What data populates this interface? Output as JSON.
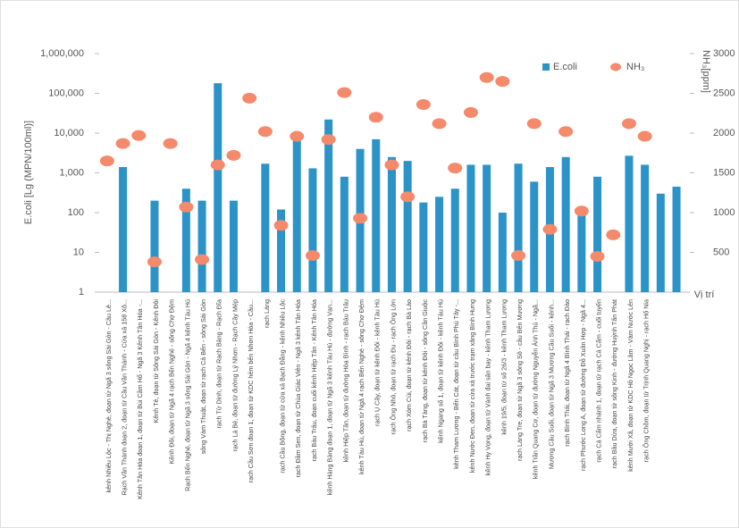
{
  "chart_data": {
    "type": "bar+scatter",
    "categories": [
      "kênh Nhiêu Lộc - Thị Nghè, đoạn từ Ngã 3 sông Sài Gòn - Cầu Lê...",
      "Rạch Văn Thánh đoạn 2, đoạn từ Cầu Văn Thánh - Cửa xả 158 Xô...",
      "Kênh Tân Hóa đoạn 1, đoạn từ Bùi Cầm Hổ - Ngã 3 Kênh Tân Hóa -...",
      "Kênh Tẻ, đoạn từ Sông Sài Gòn - Kênh Đôi",
      "Kênh Đôi, đoạn từ Ngã 4 rạch Bến Nghé - sông Chợ Đệm",
      "Rạch Bến Nghé, đoạn từ Ngã 3 sông Sài Gòn - Ngã 4 kênh Tàu Hủ",
      "sông Vàm Thuật, đoạn từ rạch Cả Bến - sông Sài Gòn",
      "rạch Từ Dinh, đoạn từ Rạch Bàng - Rạch Đĩa",
      "rạch Lá Bé, đoạn từ đường Lý Nhơn - Rạch Cây Mép",
      "rạch Cầu Sơn đoạn 1, đoạn từ KDC hẻm bến Nhơn Hòa - Cầu...",
      "rạch Láng",
      "rạch Cầu Bông, đoạn từ cửa xả Bạch Đằng - kênh Nhiêu Lộc",
      "rạch Đầm Sen, đoạn từ Chùa Giác Viên - Ngã 3 kênh Tân Hóa",
      "rạch Bàu Trâu, đoạn cuối kênh Hiệp Tân - Kênh Tân Hóa",
      "kênh Hàng Bàng đoạn 1, đoạn từ Ngã 3 kênh Tàu Hủ - đường Vạn...",
      "kênh Hiệp Tân, đoạn từ đường Hòa Bình - rạch Bàu Trâu",
      "kênh Tàu Hủ, đoạn từ Ngã 4 rạch Bến Nghé - sông Chợ Đệm",
      "rạch Ụ Cây, đoạn từ kênh Đôi - kênh Tàu Hủ",
      "rạch Ông Nhỏ, đoạn từ rạch Đu - rạch Ông Lớn",
      "rạch Xóm Củi, đoạn từ kênh Đôi - rạch Bà Lào",
      "rạch Bà Tàng, đoạn từ kênh Đôi - sông Cần Giuộc",
      "kênh Ngang số 1, đoạn từ kênh Đôi - kênh Tàu Hủ",
      "kênh Tham Lương - Bến Cát, đoạn từ cầu Bình Phú Tây -...",
      "kênh Nước Đen, đoạn từ cửa xả trước trạm xăng Bình Hưng",
      "kênh Hy Vọng, đoạn từ Vành đai sân bay - kênh Tham Lương",
      "kênh 19/5, đoạn từ số 26/3 - kênh Tham Lương",
      "rạch Láng Tre, đoạn từ Ngã 3 sông Sô - cầu Bến Mương",
      "kênh Trần Quang Cơ, đoạn từ đường Nguyễn Ảnh Thủ - Ngã...",
      "Mương Cầu Suối, đoạn từ Ngã 3 Mương Cầu Suối - kênh...",
      "rạch Bình Thái, đoạn từ Ngã 4 Bình Thái - rạch Đào",
      "rạch Phước Long A, đoạn từ đường Đỗ Xuân Hợp - Ngã 4...",
      "rạch Cá Cấm nhánh 1, đoạn từ rạch Cá Cấm - cuối tuyến",
      "rạch Bầu Dừa, đoạn từ sông Kinh - đường Huỳnh Tấn Phát",
      "kênh Mười Xã, đoạn từ KDC Hồ Ngọc Lãm - Vàm Nước Lên",
      "rạch Ông Chồm, đoạn từ Trịnh Quang Nghị - rạch Hố Nia",
      null,
      null
    ],
    "series": [
      {
        "name": "E.coli",
        "color": "#2b93c8",
        "axis": "y",
        "values": [
          null,
          1400,
          null,
          200,
          null,
          400,
          200,
          180000,
          200,
          null,
          1700,
          120,
          8000,
          1300,
          22000,
          800,
          4000,
          7000,
          2500,
          2000,
          180,
          250,
          400,
          1600,
          1600,
          100,
          1700,
          600,
          1400,
          2500,
          100,
          800,
          null,
          2700,
          1600,
          300,
          450
        ]
      },
      {
        "name": "NH₃",
        "color": "#f4896b",
        "axis": "y2",
        "values": [
          1650,
          1870,
          1970,
          380,
          1870,
          1070,
          410,
          1600,
          1720,
          2440,
          2020,
          840,
          1960,
          460,
          1920,
          2510,
          930,
          2200,
          1600,
          1200,
          2360,
          2120,
          1560,
          2260,
          2700,
          2650,
          460,
          2120,
          790,
          2020,
          1020,
          450,
          720,
          2120,
          1960,
          null,
          null
        ]
      }
    ],
    "ylabel": "E.coli [Lg (MPN/100ml)]",
    "y2label": "NH₃[ppm]",
    "xlabel": "Vị trí",
    "ylog": true,
    "ylim": [
      1,
      1000000
    ],
    "yticks": [
      1,
      10,
      100,
      {
        "value": 1000,
        "label": "1,000"
      },
      {
        "value": 10000,
        "label": "10,000"
      },
      {
        "value": 100000,
        "label": "100,000"
      },
      {
        "value": 1000000,
        "label": "1,000,000"
      }
    ],
    "y2lim": [
      0,
      3000
    ],
    "y2ticks": [
      500,
      1000,
      1500,
      2000,
      2500,
      3000
    ]
  }
}
